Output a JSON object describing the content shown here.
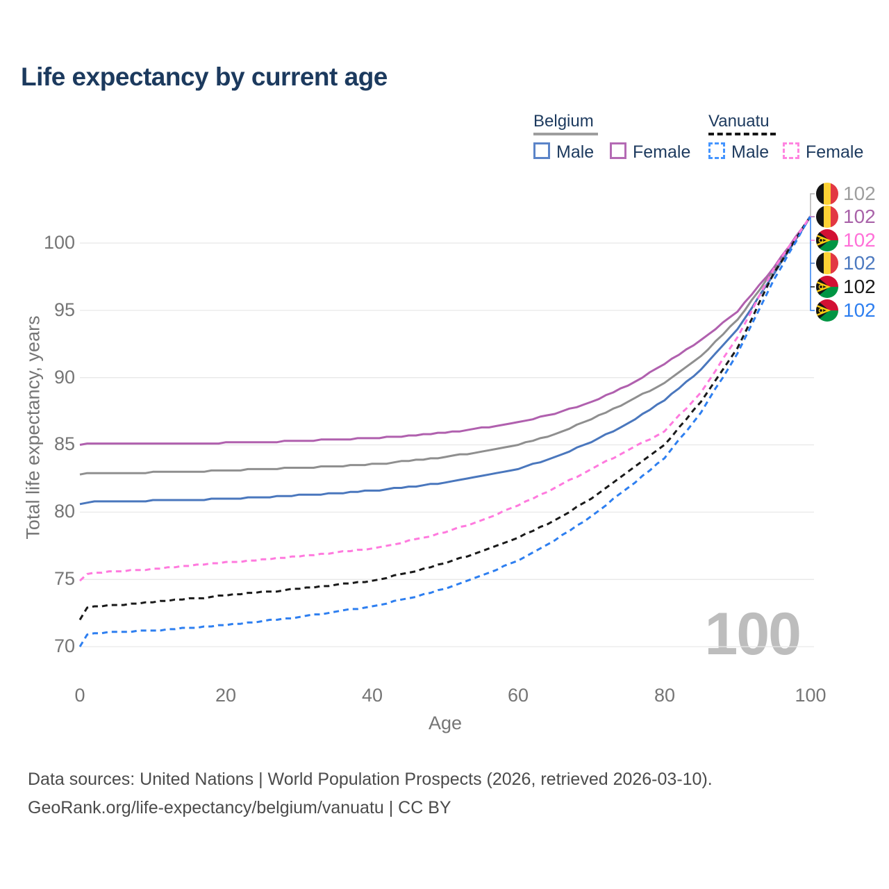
{
  "title": "Life expectancy by current age",
  "legend": {
    "groups": [
      {
        "label": "Belgium",
        "line_style": "solid",
        "underline_color": "#9e9e9e",
        "items": [
          {
            "label": "Male",
            "color": "#5b84c8"
          },
          {
            "label": "Female",
            "color": "#b46ab4"
          }
        ]
      },
      {
        "label": "Vanuatu",
        "line_style": "dashed",
        "underline_color": "#161616",
        "items": [
          {
            "label": "Male",
            "color": "#4595ff"
          },
          {
            "label": "Female",
            "color": "#ff85e0"
          }
        ]
      }
    ]
  },
  "chart_data": {
    "type": "line",
    "title": "Life expectancy by current age",
    "xlabel": "Age",
    "ylabel": "Total life expectancy, years",
    "x_ticks": [
      0,
      20,
      40,
      60,
      80,
      100
    ],
    "y_ticks": [
      70,
      75,
      80,
      85,
      90,
      95,
      100
    ],
    "xlim": [
      0,
      100
    ],
    "ylim": [
      68.5,
      103
    ],
    "grid": "horizontal",
    "legend_position": "top-right",
    "ages": [
      0,
      1,
      2,
      5,
      10,
      15,
      20,
      25,
      30,
      35,
      40,
      45,
      50,
      55,
      60,
      65,
      70,
      75,
      80,
      85,
      90,
      95,
      100
    ],
    "series": [
      {
        "name": "Belgium — Both sexes",
        "country": "Belgium",
        "sex": "Both",
        "line": "solid",
        "color": "#8f8f8f",
        "end_value": 102,
        "values": [
          82.8,
          82.85,
          82.9,
          82.9,
          82.95,
          83.0,
          83.1,
          83.2,
          83.3,
          83.42,
          83.55,
          83.8,
          84.1,
          84.5,
          85.0,
          85.8,
          86.9,
          88.2,
          89.6,
          91.6,
          94.3,
          98.0,
          102
        ]
      },
      {
        "name": "Belgium — Female",
        "country": "Belgium",
        "sex": "Female",
        "line": "solid",
        "color": "#b060ae",
        "end_value": 102,
        "values": [
          85.0,
          85.05,
          85.1,
          85.1,
          85.1,
          85.12,
          85.15,
          85.2,
          85.3,
          85.4,
          85.5,
          85.68,
          85.9,
          86.25,
          86.7,
          87.3,
          88.2,
          89.4,
          91.0,
          92.8,
          94.9,
          98.2,
          102
        ]
      },
      {
        "name": "Belgium — Male",
        "country": "Belgium",
        "sex": "Male",
        "line": "solid",
        "color": "#4a77bd",
        "end_value": 102,
        "values": [
          80.6,
          80.7,
          80.75,
          80.8,
          80.85,
          80.9,
          81.0,
          81.1,
          81.25,
          81.4,
          81.6,
          81.85,
          82.2,
          82.65,
          83.2,
          84.1,
          85.2,
          86.6,
          88.3,
          90.6,
          93.6,
          97.7,
          102
        ]
      },
      {
        "name": "Vanuatu — Both sexes",
        "country": "Vanuatu",
        "sex": "Both",
        "line": "dashed",
        "color": "#1a1a1a",
        "end_value": 102,
        "values": [
          72.0,
          72.9,
          73.0,
          73.1,
          73.3,
          73.55,
          73.8,
          74.05,
          74.3,
          74.6,
          74.9,
          75.5,
          76.2,
          77.1,
          78.1,
          79.4,
          81.0,
          83.0,
          85.0,
          88.2,
          92.2,
          97.8,
          102
        ]
      },
      {
        "name": "Vanuatu — Male",
        "country": "Vanuatu",
        "sex": "Male",
        "line": "dashed",
        "color": "#2e7ff0",
        "end_value": 102,
        "values": [
          70.0,
          70.9,
          71.0,
          71.1,
          71.2,
          71.4,
          71.6,
          71.9,
          72.2,
          72.6,
          73.0,
          73.6,
          74.3,
          75.3,
          76.4,
          77.9,
          79.7,
          81.8,
          84.0,
          87.4,
          91.8,
          97.3,
          102
        ]
      },
      {
        "name": "Vanuatu — Female",
        "country": "Vanuatu",
        "sex": "Female",
        "line": "dashed",
        "color": "#ff7ade",
        "end_value": 102,
        "values": [
          74.9,
          75.4,
          75.5,
          75.6,
          75.75,
          76.0,
          76.25,
          76.45,
          76.7,
          77.0,
          77.3,
          77.85,
          78.5,
          79.4,
          80.5,
          81.8,
          83.2,
          84.6,
          86.0,
          88.9,
          93.0,
          98.1,
          102
        ]
      }
    ]
  },
  "right_labels": [
    {
      "country": "Belgium",
      "value": "102",
      "color": "#9e9e9e"
    },
    {
      "country": "Belgium",
      "value": "102",
      "color": "#a963a9"
    },
    {
      "country": "Vanuatu",
      "value": "102",
      "color": "#ff70d8"
    },
    {
      "country": "Belgium",
      "value": "102",
      "color": "#4d7ac0"
    },
    {
      "country": "Vanuatu",
      "value": "102",
      "color": "#1a1a1a"
    },
    {
      "country": "Vanuatu",
      "value": "102",
      "color": "#2e7ff0"
    }
  ],
  "frame_counter": "100",
  "footer": {
    "line1": "Data sources: United Nations | World Population Prospects (2026, retrieved 2026-03-10).",
    "line2": "GeoRank.org/life-expectancy/belgium/vanuatu | CC BY"
  }
}
